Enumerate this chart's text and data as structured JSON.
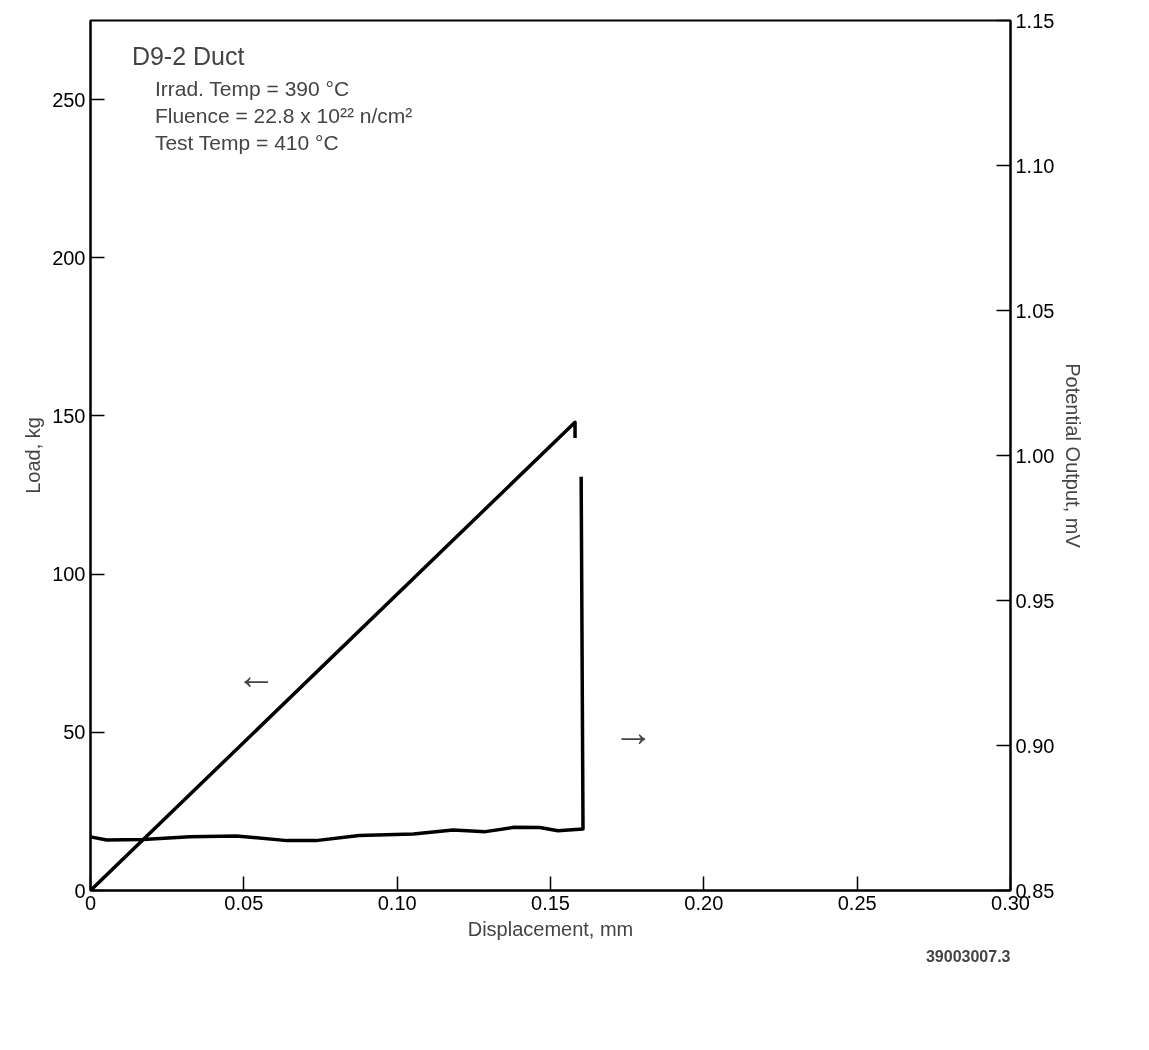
{
  "chart_data": {
    "type": "line",
    "title": "D9-2 Duct",
    "xlabel": "Displacement, mm",
    "ylabel": "Load, kg",
    "y2label": "Potential Output, mV",
    "annotations": [
      "Irrad. Temp = 390 °C",
      "Fluence =  22.8 x 10²² n/cm²",
      "Test Temp = 410 °C",
      "←",
      "→",
      "39003007.3"
    ],
    "series": [
      {
        "color": "#000000",
        "x": [
          0,
          0.158,
          0.158
        ],
        "values": [
          0,
          148,
          143
        ]
      },
      {
        "color": "#000000",
        "axis": "y2",
        "x": [
          0,
          0.0053,
          0.0171,
          0.0324,
          0.0476,
          0.0641,
          0.0735,
          0.0876,
          0.1053,
          0.1182,
          0.1288,
          0.1382,
          0.1465,
          0.1524,
          0.1606,
          0.16
        ],
        "values": [
          0.8685,
          0.8674,
          0.8676,
          0.8685,
          0.8688,
          0.8672,
          0.8672,
          0.869,
          0.8695,
          0.8709,
          0.8703,
          0.8718,
          0.8717,
          0.8706,
          0.8712,
          0.9927
        ]
      }
    ],
    "xlim": [
      0,
      0.3
    ],
    "ylim": [
      0,
      275
    ],
    "y2lim": [
      0.85,
      1.15
    ],
    "xticks": [
      0,
      0.05,
      {
        "value": 0.1,
        "label": "0.10"
      },
      0.15,
      {
        "value": 0.2,
        "label": "0.20"
      },
      0.25,
      {
        "value": 0.3,
        "label": "0.30"
      }
    ],
    "yticks": [
      0,
      50,
      100,
      150,
      200,
      250
    ],
    "y2ticks": [
      0.85,
      {
        "value": 0.9,
        "label": "0.90"
      },
      0.95,
      {
        "value": 1.0,
        "label": "1.00"
      },
      1.05,
      {
        "value": 1.1,
        "label": "1.10"
      },
      1.15
    ],
    "grid": false,
    "legend": false,
    "marker": "none",
    "line_style": "solid"
  }
}
